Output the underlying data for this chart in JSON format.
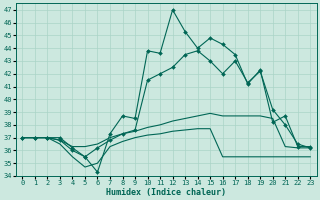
{
  "xlabel": "Humidex (Indice chaleur)",
  "bg_color": "#cce8df",
  "grid_color": "#aad4c8",
  "line_color": "#006655",
  "xlim": [
    -0.5,
    23.5
  ],
  "ylim": [
    34,
    47.5
  ],
  "yticks": [
    34,
    35,
    36,
    37,
    38,
    39,
    40,
    41,
    42,
    43,
    44,
    45,
    46,
    47
  ],
  "xticks": [
    0,
    1,
    2,
    3,
    4,
    5,
    6,
    7,
    8,
    9,
    10,
    11,
    12,
    13,
    14,
    15,
    16,
    17,
    18,
    19,
    20,
    21,
    22,
    23
  ],
  "line1_x": [
    0,
    1,
    2,
    3,
    4,
    5,
    6,
    7,
    8,
    9,
    10,
    11,
    12,
    13,
    14,
    15,
    16,
    17,
    18,
    19,
    20,
    21,
    22,
    23
  ],
  "line1_y": [
    37.0,
    37.0,
    37.0,
    37.0,
    36.2,
    35.5,
    34.3,
    37.3,
    38.7,
    38.5,
    43.8,
    43.6,
    47.0,
    45.3,
    44.0,
    44.8,
    44.3,
    43.5,
    41.2,
    42.3,
    38.2,
    38.7,
    36.3,
    36.3
  ],
  "line2_x": [
    0,
    1,
    2,
    3,
    4,
    5,
    6,
    7,
    8,
    9,
    10,
    11,
    12,
    13,
    14,
    15,
    16,
    17,
    18,
    19,
    20,
    21,
    22,
    23
  ],
  "line2_y": [
    37.0,
    37.0,
    37.0,
    36.8,
    36.0,
    35.5,
    36.2,
    36.8,
    37.3,
    37.6,
    41.5,
    42.0,
    42.5,
    43.5,
    43.8,
    43.0,
    42.0,
    43.0,
    41.3,
    42.2,
    39.2,
    38.0,
    36.5,
    36.2
  ],
  "line3_x": [
    0,
    1,
    2,
    3,
    4,
    5,
    6,
    7,
    8,
    9,
    10,
    11,
    12,
    13,
    14,
    15,
    16,
    17,
    18,
    19,
    20,
    21,
    22,
    23
  ],
  "line3_y": [
    37.0,
    37.0,
    37.0,
    36.8,
    36.3,
    36.3,
    36.5,
    37.0,
    37.3,
    37.5,
    37.8,
    38.0,
    38.3,
    38.5,
    38.7,
    38.9,
    38.7,
    38.7,
    38.7,
    38.7,
    38.5,
    36.3,
    36.2,
    36.2
  ],
  "line4_x": [
    0,
    1,
    2,
    3,
    4,
    5,
    6,
    7,
    8,
    9,
    10,
    11,
    12,
    13,
    14,
    15,
    16,
    17,
    18,
    19,
    20,
    21,
    22,
    23
  ],
  "line4_y": [
    37.0,
    37.0,
    37.0,
    36.5,
    35.5,
    34.7,
    35.0,
    36.3,
    36.7,
    37.0,
    37.2,
    37.3,
    37.5,
    37.6,
    37.7,
    37.7,
    35.5,
    35.5,
    35.5,
    35.5,
    35.5,
    35.5,
    35.5,
    35.5
  ]
}
